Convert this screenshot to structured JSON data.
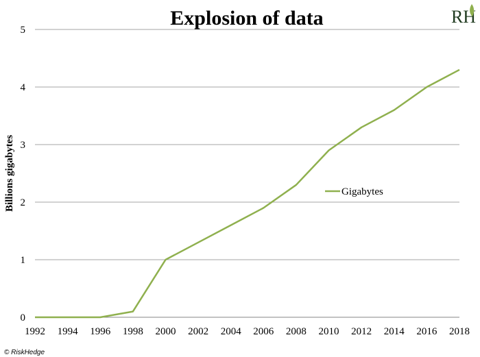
{
  "chart_data": {
    "type": "line",
    "title": "Explosion of data",
    "xlabel": "",
    "ylabel": "Billions gigabytes",
    "x": [
      1992,
      1994,
      1996,
      1998,
      2000,
      2002,
      2004,
      2006,
      2008,
      2010,
      2012,
      2014,
      2016,
      2018
    ],
    "xlim": [
      1992,
      2018
    ],
    "ylim": [
      0,
      5
    ],
    "yticks": [
      0,
      1,
      2,
      3,
      4,
      5
    ],
    "grid": "horizontal",
    "legend_position": "center-right",
    "series": [
      {
        "name": "Gigabytes",
        "color": "#8fb04e",
        "values": [
          0,
          0,
          0,
          0.1,
          1.0,
          1.3,
          1.6,
          1.9,
          2.3,
          2.9,
          3.3,
          3.6,
          4.0,
          4.3
        ]
      }
    ]
  },
  "credit": "© RiskHedge",
  "logo": {
    "text": "RH",
    "accent_color": "#8fb04e"
  },
  "colors": {
    "gridline": "#a6a6a6",
    "axis": "#868686"
  }
}
